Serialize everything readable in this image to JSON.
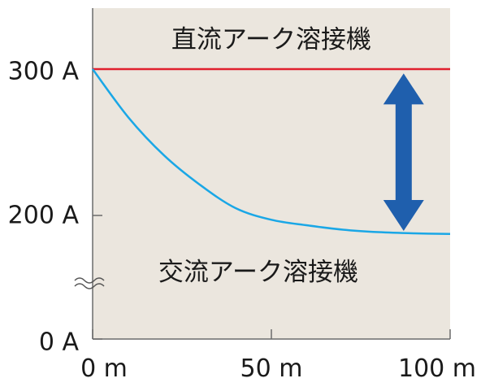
{
  "chart_data": {
    "type": "line",
    "title": "",
    "xlabel": "",
    "ylabel": "",
    "x_ticks": [
      {
        "value": 0,
        "label": "0 m"
      },
      {
        "value": 50,
        "label": "50 m"
      },
      {
        "value": 100,
        "label": "100 m"
      }
    ],
    "y_ticks": [
      {
        "value": 0,
        "label": "0 A"
      },
      {
        "value": 200,
        "label": "200 A"
      },
      {
        "value": 300,
        "label": "300 A"
      }
    ],
    "y_axis_break": true,
    "xlim": [
      0,
      100
    ],
    "series": [
      {
        "name": "直流アーク溶接機",
        "color": "#e0202e",
        "x": [
          0,
          25,
          50,
          75,
          100
        ],
        "y": [
          300,
          300,
          300,
          300,
          300
        ]
      },
      {
        "name": "交流アーク溶接機",
        "color": "#1aa7e6",
        "x": [
          0,
          10,
          20,
          30,
          40,
          50,
          60,
          70,
          80,
          90,
          100
        ],
        "y": [
          300,
          267,
          241,
          221,
          205,
          193,
          184,
          177,
          173,
          171,
          170
        ]
      }
    ],
    "annotation": {
      "type": "double-arrow",
      "x": 87,
      "y_from": 297,
      "y_to": 175,
      "color": "#1f5fad"
    },
    "background_color": "#ebe6de",
    "grid": false
  }
}
